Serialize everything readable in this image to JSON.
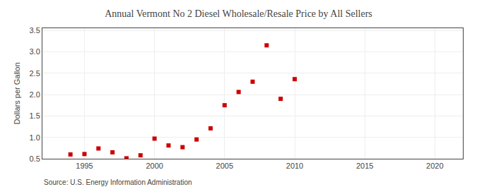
{
  "chart_data": {
    "type": "scatter",
    "title": "Annual Vermont No 2 Diesel Wholesale/Resale Price by All Sellers",
    "ylabel": "Dollars per Gallon",
    "annotations": [
      "Source: U.S. Energy Information Administration"
    ],
    "x": [
      1994,
      1995,
      1996,
      1997,
      1998,
      1999,
      2000,
      2001,
      2002,
      2003,
      2004,
      2005,
      2006,
      2007,
      2008,
      2009,
      2010
    ],
    "values": [
      0.6,
      0.61,
      0.74,
      0.65,
      0.51,
      0.58,
      0.97,
      0.81,
      0.77,
      0.95,
      1.21,
      1.75,
      2.06,
      2.3,
      3.15,
      1.9,
      2.36
    ],
    "color": "#cc0000",
    "marker": "square",
    "xlim": [
      1992,
      2022
    ],
    "ylim": [
      0.5,
      3.55
    ],
    "xticks": [
      1995,
      2000,
      2005,
      2010,
      2015,
      2020
    ],
    "yticks": [
      0.5,
      {
        "value": 1,
        "label": "1.0"
      },
      1.5,
      {
        "value": 2,
        "label": "2.0"
      },
      2.5,
      {
        "value": 3,
        "label": "3.0"
      },
      3.5
    ],
    "grid": true
  }
}
